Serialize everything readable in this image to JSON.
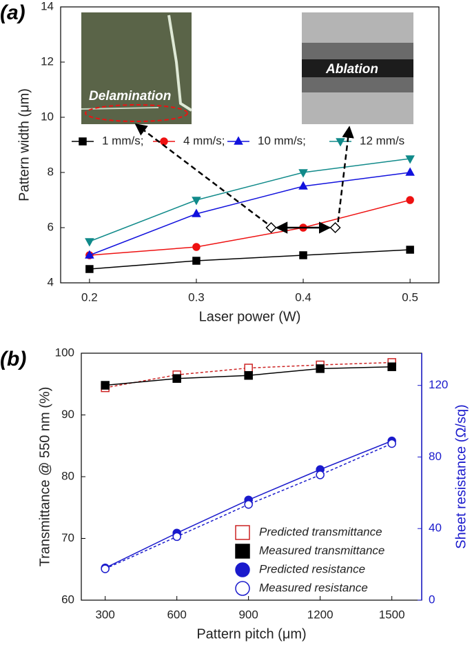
{
  "chart_data": [
    {
      "type": "line",
      "panel_label": "(a)",
      "x_label": "Laser power (W)",
      "y_label": "Pattern width (μm)",
      "x": [
        0.2,
        0.3,
        0.4,
        0.5
      ],
      "xlim": [
        0.173,
        0.527
      ],
      "xticks": [
        0.2,
        0.3,
        0.4,
        0.5
      ],
      "ylim": [
        4,
        14
      ],
      "yticks": [
        4,
        6,
        8,
        10,
        12,
        14
      ],
      "legend_position": "upper center",
      "series": [
        {
          "name": "1 mm/s;",
          "color": "#000000",
          "marker": "square",
          "filled": true,
          "dashed": false,
          "values": [
            4.5,
            4.8,
            5.0,
            5.2
          ]
        },
        {
          "name": "4 mm/s;",
          "color": "#ee1111",
          "marker": "circle",
          "filled": true,
          "dashed": false,
          "values": [
            5.0,
            5.3,
            6.0,
            7.0
          ]
        },
        {
          "name": "10 mm/s;",
          "color": "#1111dd",
          "marker": "triangle-up",
          "filled": true,
          "dashed": false,
          "values": [
            5.0,
            6.5,
            7.5,
            8.0
          ]
        },
        {
          "name": "12 mm/s",
          "color": "#108a8a",
          "marker": "triangle-down",
          "filled": true,
          "dashed": false,
          "values": [
            5.5,
            7.0,
            8.0,
            8.5
          ]
        }
      ],
      "annotations": [
        "Delamination",
        "Ablation"
      ],
      "markers": {
        "x": [
          0.37,
          0.43
        ],
        "y": [
          6,
          6
        ]
      }
    },
    {
      "type": "line",
      "panel_label": "(b)",
      "x_label": "Pattern pitch (μm)",
      "y_label": "Transmittance @ 550 nm (%)",
      "y2_label": "Sheet resistance (Ω/sq)",
      "y2_color": "#1a1acc",
      "x": [
        300,
        600,
        900,
        1200,
        1500
      ],
      "xlim": [
        200,
        1625
      ],
      "xticks": [
        300,
        600,
        900,
        1200,
        1500
      ],
      "ylim": [
        60,
        100
      ],
      "yticks": [
        60,
        70,
        80,
        90,
        100
      ],
      "y2lim": [
        0,
        138
      ],
      "y2ticks": [
        0,
        40,
        80,
        120
      ],
      "legend_position": "lower right",
      "series": [
        {
          "name": "Predicted transmittance",
          "color": "#cc2222",
          "marker": "square",
          "filled": false,
          "dashed": true,
          "values": [
            94.4,
            96.5,
            97.6,
            98.1,
            98.5
          ]
        },
        {
          "name": "Measured transmittance",
          "color": "#000000",
          "marker": "square",
          "filled": true,
          "dashed": false,
          "values": [
            94.8,
            95.9,
            96.4,
            97.5,
            97.8
          ]
        },
        {
          "name": "Predicted resistance",
          "color": "#1a1acc",
          "marker": "circle",
          "filled": true,
          "dashed": false,
          "axis": "y2",
          "values": [
            18,
            37.5,
            56,
            73,
            89
          ]
        },
        {
          "name": "Measured resistance",
          "color": "#1a1acc",
          "marker": "circle",
          "filled": false,
          "dashed": true,
          "axis": "y2",
          "values": [
            17.5,
            35.5,
            53.5,
            70,
            87.5
          ]
        }
      ]
    }
  ]
}
